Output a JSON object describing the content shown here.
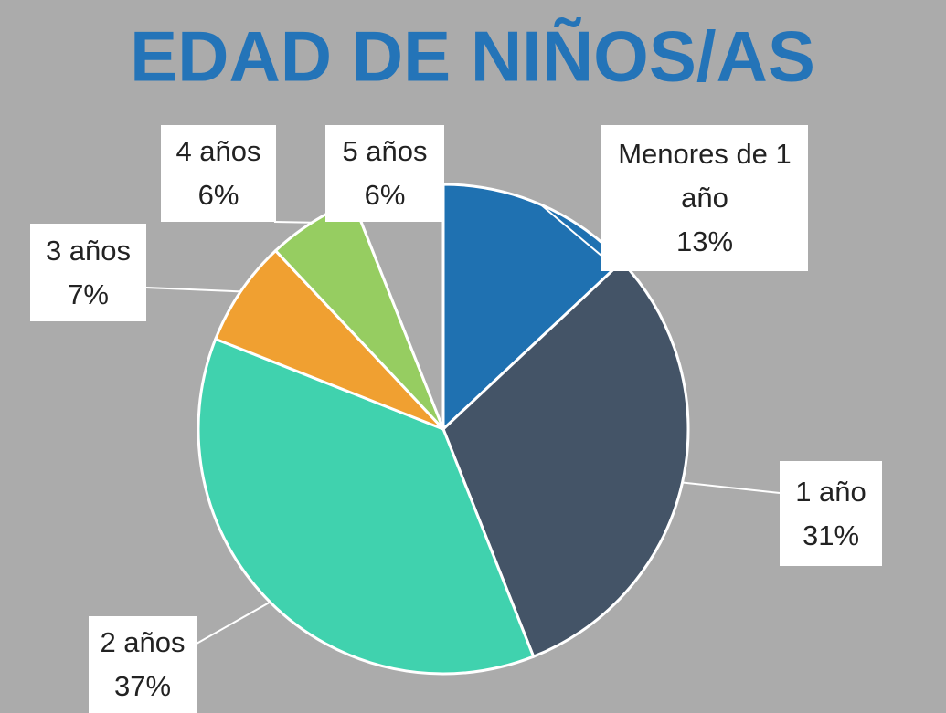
{
  "chart_data": {
    "type": "pie",
    "title": "EDAD DE NIÑOS/AS",
    "categories": [
      "Menores de 1 año",
      "1 año",
      "2 años",
      "3 años",
      "4 años",
      "5 años"
    ],
    "values": [
      13,
      31,
      37,
      7,
      6,
      6
    ],
    "value_labels": [
      "13%",
      "31%",
      "37%",
      "7%",
      "6%",
      "6%"
    ],
    "colors": [
      "#1f71b1",
      "#445467",
      "#40d2ae",
      "#f0a031",
      "#96cd61",
      "#ababab"
    ]
  }
}
